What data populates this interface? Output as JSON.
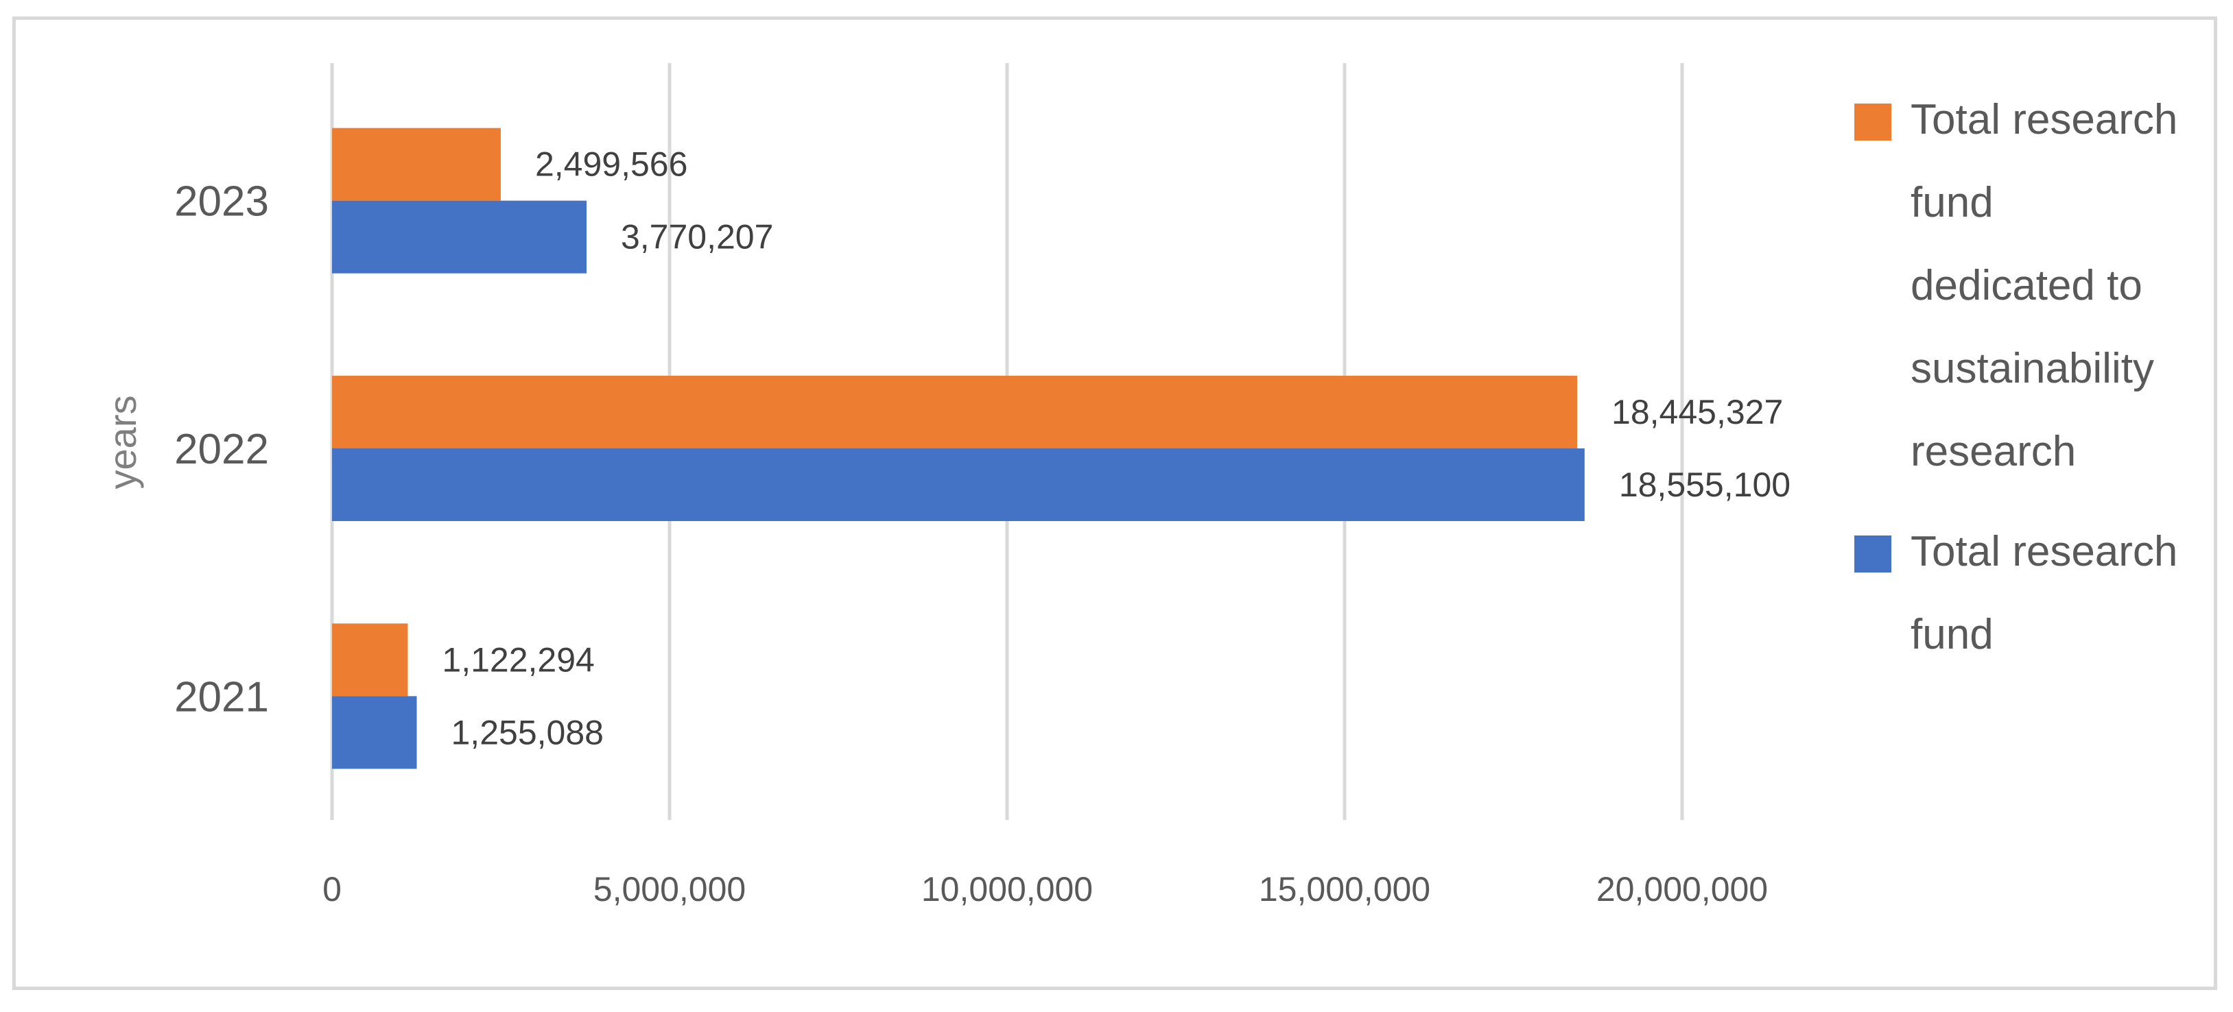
{
  "chart_data": {
    "type": "bar",
    "orientation": "horizontal",
    "title": "",
    "xlabel": "",
    "ylabel": "years",
    "categories": [
      "2021",
      "2022",
      "2023"
    ],
    "series": [
      {
        "name": "Total research fund",
        "color": "#4472c4",
        "values": [
          1255088,
          18555100,
          3770207
        ],
        "labels": [
          "1,255,088",
          "18,555,100",
          "3,770,207"
        ]
      },
      {
        "name": "Total research fund dedicated to sustainability research",
        "color": "#ed7d31",
        "values": [
          1122294,
          18445327,
          2499566
        ],
        "labels": [
          "1,122,294",
          "18,445,327",
          "2,499,566"
        ]
      }
    ],
    "xlim": [
      0,
      20000000
    ],
    "ticks": [
      {
        "value": 0,
        "label": "0"
      },
      {
        "value": 5000000,
        "label": "5,000,000"
      },
      {
        "value": 10000000,
        "label": "10,000,000"
      },
      {
        "value": 15000000,
        "label": "15,000,000"
      },
      {
        "value": 20000000,
        "label": "20,000,000"
      }
    ],
    "grid": true,
    "legend_position": "right",
    "legend": [
      {
        "name": "Total research fund dedicated to sustainability research",
        "color": "#ed7d31",
        "lines": [
          "Total research",
          "fund",
          "dedicated to",
          "sustainability",
          "research"
        ]
      },
      {
        "name": "Total research fund",
        "color": "#4472c4",
        "lines": [
          "Total research",
          "fund"
        ]
      }
    ]
  }
}
